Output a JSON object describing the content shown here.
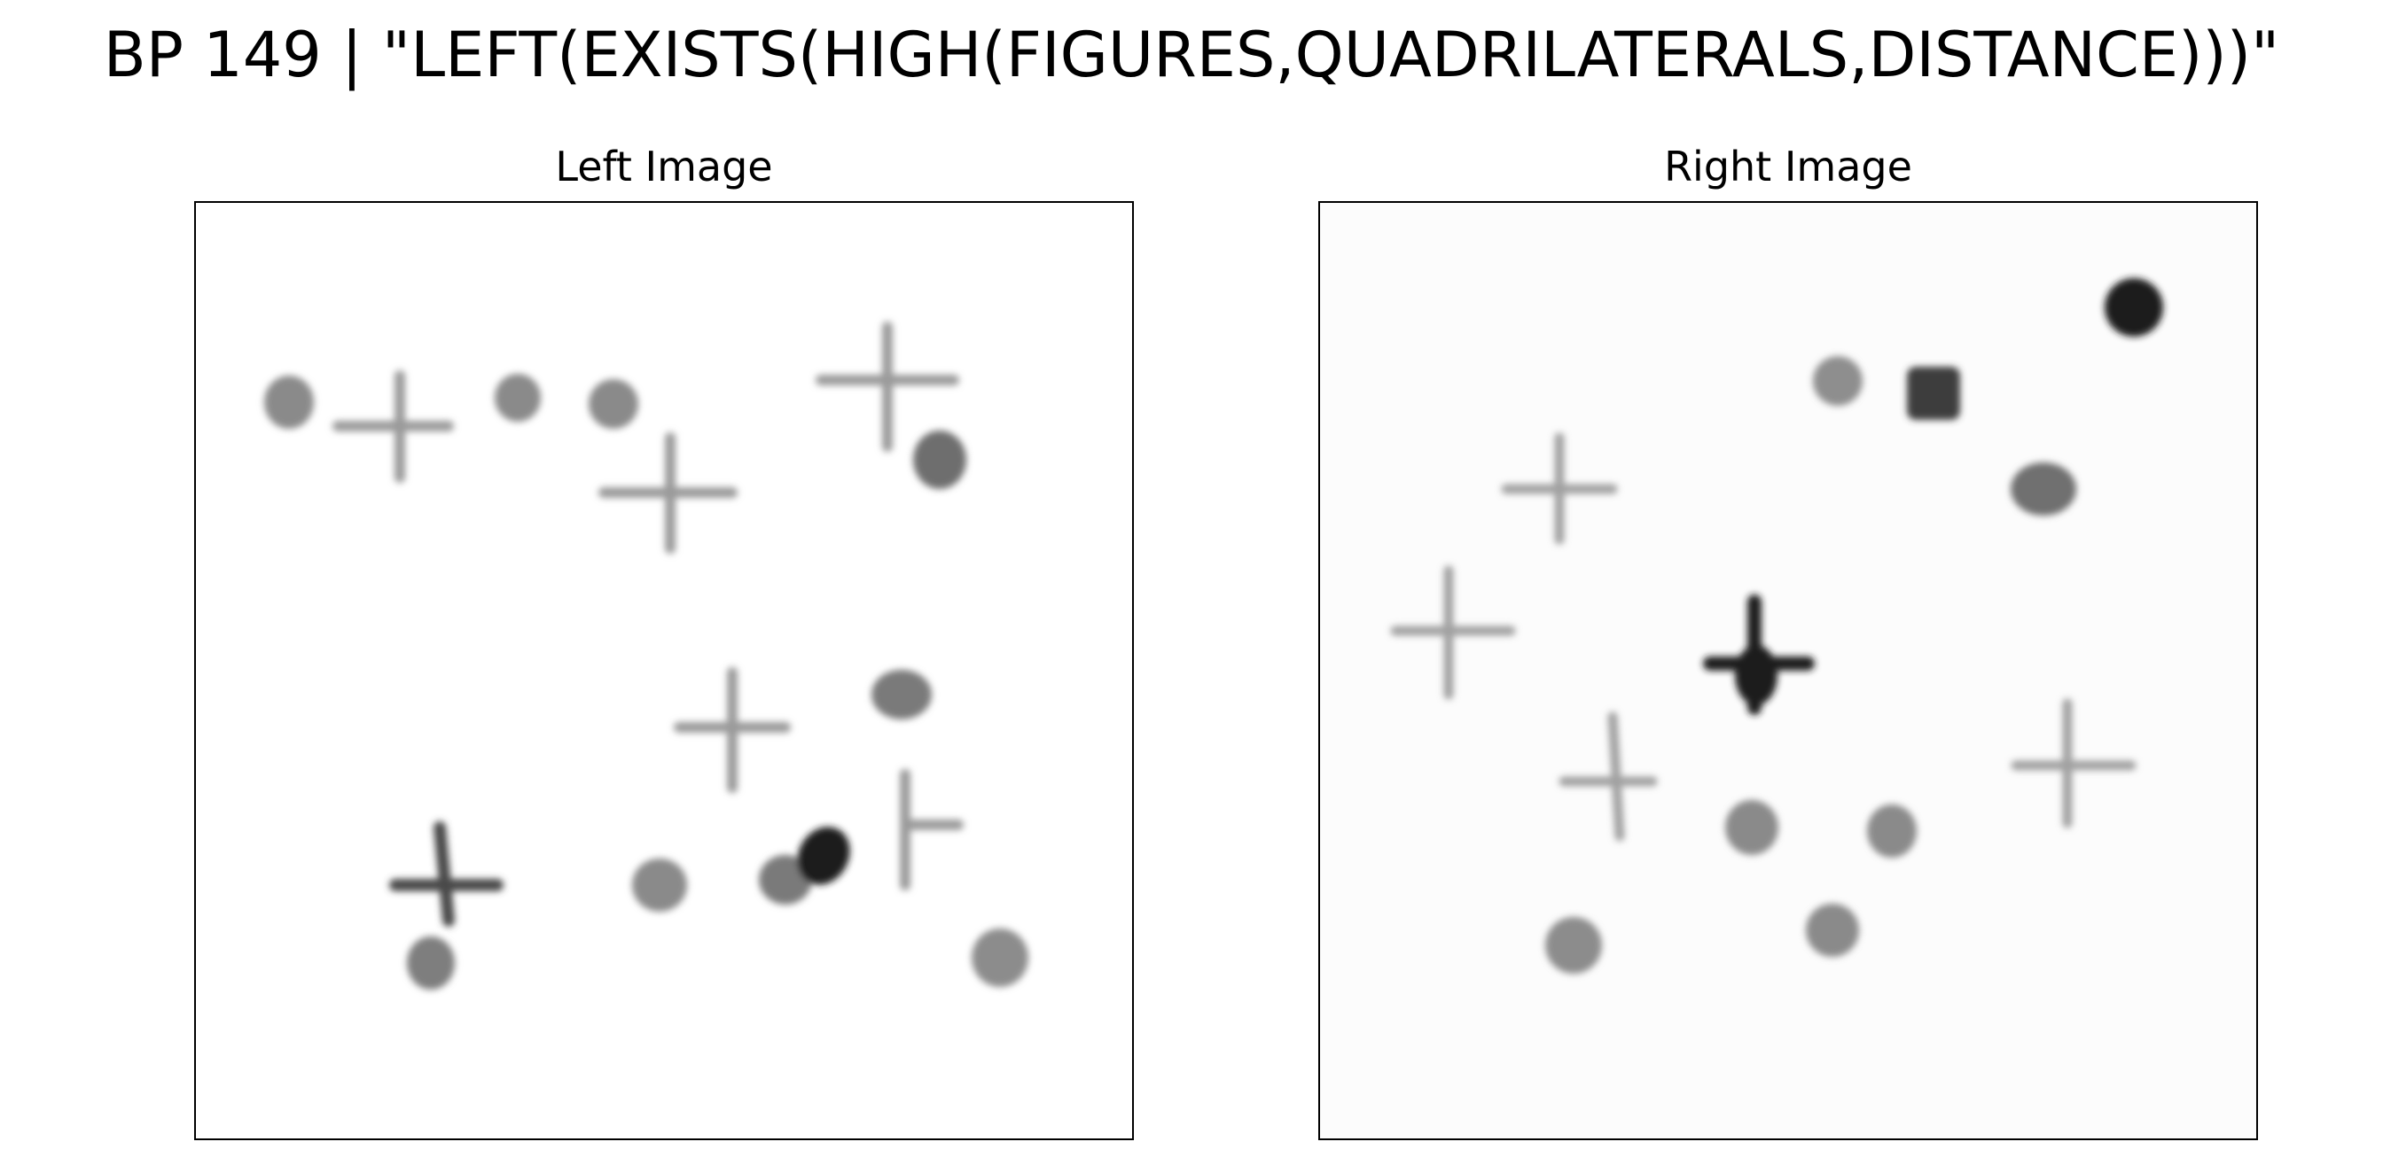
{
  "title": "BP 149 | \"LEFT(EXISTS(HIGH(FIGURES,QUADRILATERALS,DISTANCE)))\"",
  "panels": {
    "left": {
      "title": "Left Image",
      "background": "#ffffff",
      "shape_color": "#888888"
    },
    "right": {
      "title": "Right Image",
      "background": "#fcfcfc",
      "shape_color": "#888888"
    }
  }
}
